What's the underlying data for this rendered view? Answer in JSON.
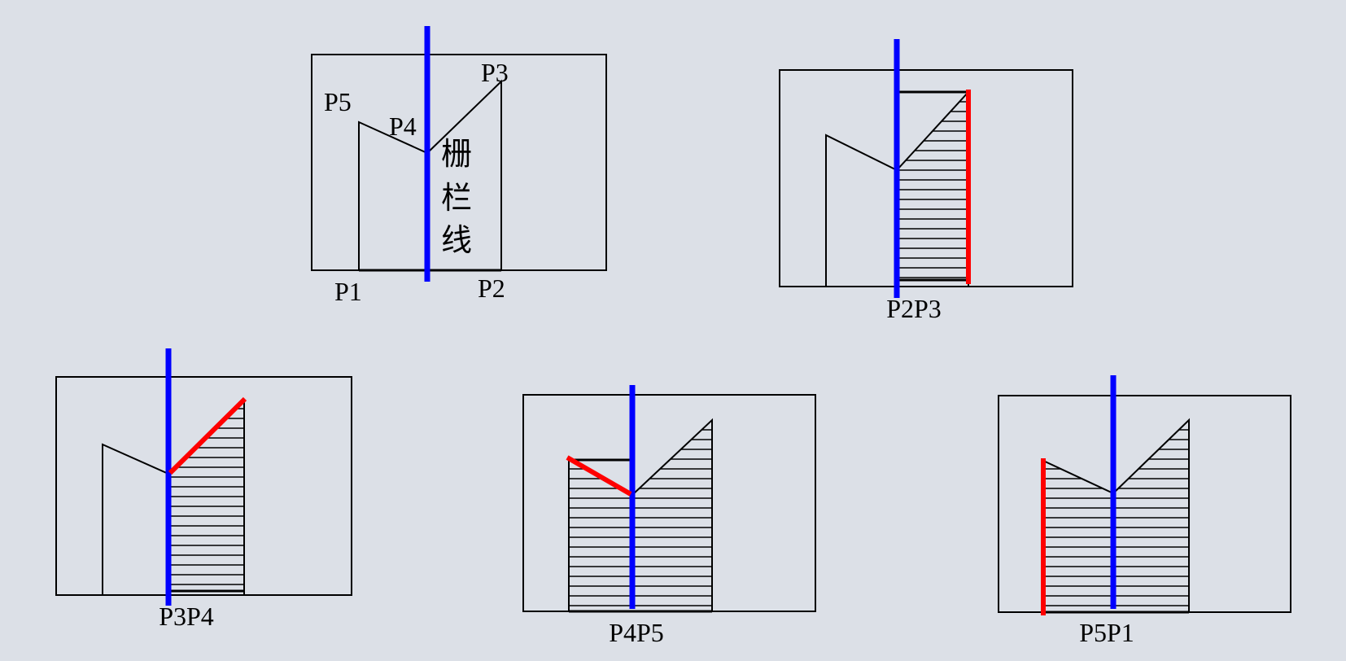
{
  "colors": {
    "background": "#dce0e7",
    "outline": "#000000",
    "fence_line": "#0000ff",
    "active_edge": "#ff0000",
    "hatch": "#000000"
  },
  "panels": [
    {
      "id": "overview",
      "caption": "",
      "point_labels": {
        "p1": "P1",
        "p2": "P2",
        "p3": "P3",
        "p4": "P4",
        "p5": "P5"
      },
      "fence_label": [
        "栅",
        "栏",
        "线"
      ]
    },
    {
      "id": "p2p3",
      "caption": "P2P3",
      "active_edge": "P2-P3"
    },
    {
      "id": "p3p4",
      "caption": "P3P4",
      "active_edge": "P3-P4"
    },
    {
      "id": "p4p5",
      "caption": "P4P5",
      "active_edge": "P4-P5"
    },
    {
      "id": "p5p1",
      "caption": "P5P1",
      "active_edge": "P5-P1"
    }
  ]
}
